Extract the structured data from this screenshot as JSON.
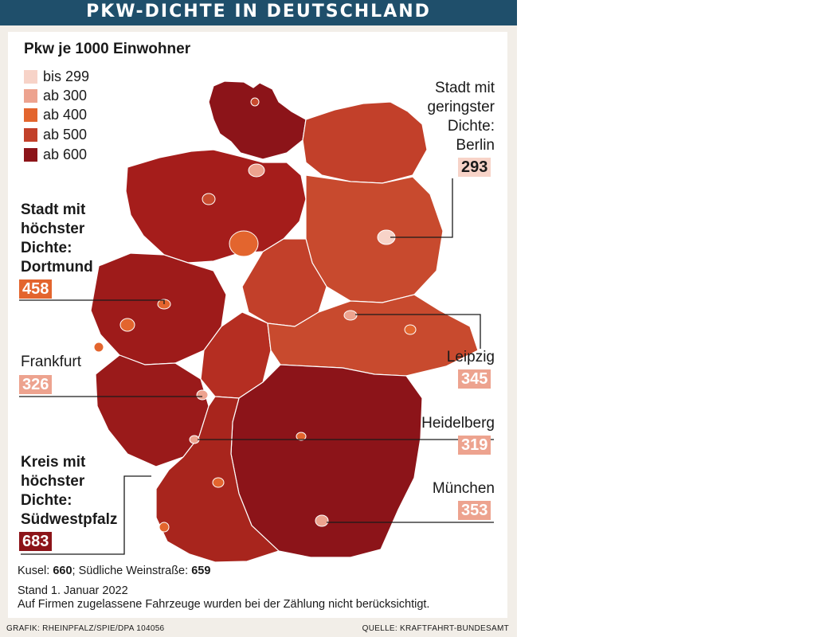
{
  "header": {
    "title": "PKW-DICHTE IN DEUTSCHLAND"
  },
  "legend": {
    "title": "Pkw je 1000 Einwohner",
    "items": [
      {
        "label": "bis 299",
        "color": "#f7d3c8"
      },
      {
        "label": "ab 300",
        "color": "#eda38f"
      },
      {
        "label": "ab 400",
        "color": "#e3652e"
      },
      {
        "label": "ab 500",
        "color": "#c2402a"
      },
      {
        "label": "ab 600",
        "color": "#8c1419"
      }
    ]
  },
  "callouts": {
    "berlin": {
      "line1": "Stadt mit",
      "line2": "geringster",
      "line3": "Dichte:",
      "line4": "Berlin",
      "value": "293"
    },
    "dortmund": {
      "line1": "Stadt mit",
      "line2": "höchster",
      "line3": "Dichte:",
      "line4": "Dortmund",
      "value": "458"
    },
    "frankfurt": {
      "name": "Frankfurt",
      "value": "326"
    },
    "leipzig": {
      "name": "Leipzig",
      "value": "345"
    },
    "heidelberg": {
      "name": "Heidelberg",
      "value": "319"
    },
    "muenchen": {
      "name": "München",
      "value": "353"
    },
    "suedwestpfalz": {
      "line1": "Kreis mit",
      "line2": "höchster",
      "line3": "Dichte:",
      "line4": "Südwestpfalz",
      "value": "683"
    }
  },
  "footer": {
    "kusel_label": "Kusel: ",
    "kusel_value": "660",
    "sep": "; Südliche Weinstraße: ",
    "sw_value": "659",
    "stand": "Stand 1. Januar 2022",
    "note": "Auf Firmen zugelassene Fahrzeuge wurden bei der Zählung nicht berücksichtigt.",
    "credit_left": "GRAFIK: RHEINPFALZ/SPIE/DPA 104056",
    "credit_right": "QUELLE: KRAFTFAHRT-BUNDESAMT"
  }
}
